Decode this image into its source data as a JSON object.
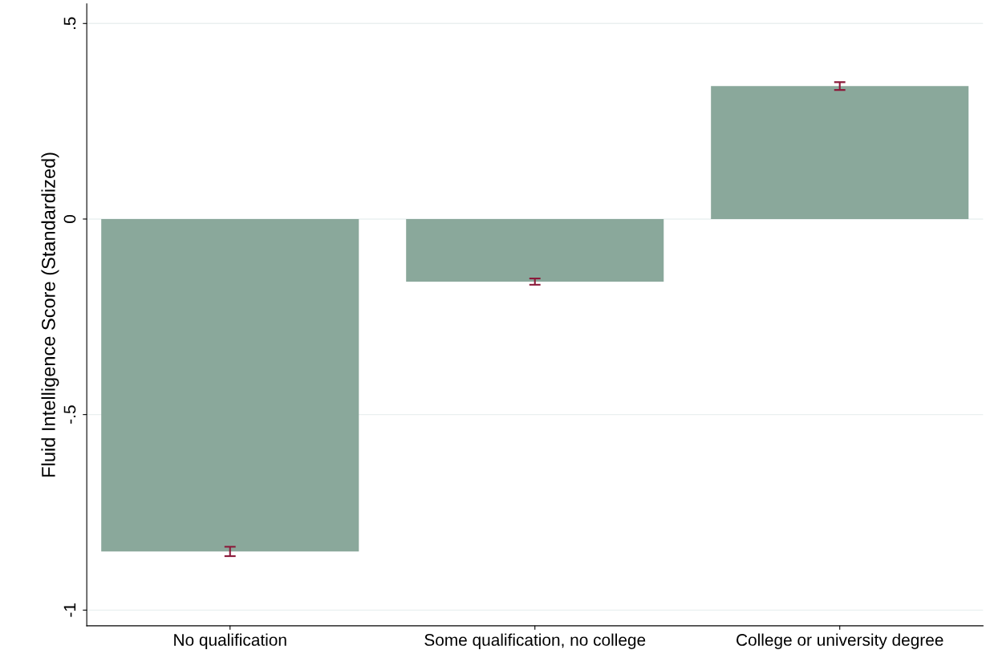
{
  "chart_data": {
    "type": "bar",
    "ylabel": "Fluid Intelligence Score (Standardized)",
    "categories": [
      "No qualification",
      "Some qualification, no college",
      "College or university degree"
    ],
    "values": [
      -0.85,
      -0.16,
      0.34
    ],
    "errors": [
      0.012,
      0.008,
      0.01
    ],
    "color": "#8aa89b",
    "ylim": [
      -1.04,
      0.55
    ],
    "yticks": [
      {
        "value": 0.5,
        "label": ".5"
      },
      0,
      {
        "value": -0.5,
        "label": "-.5"
      },
      -1
    ],
    "grid": "y"
  }
}
